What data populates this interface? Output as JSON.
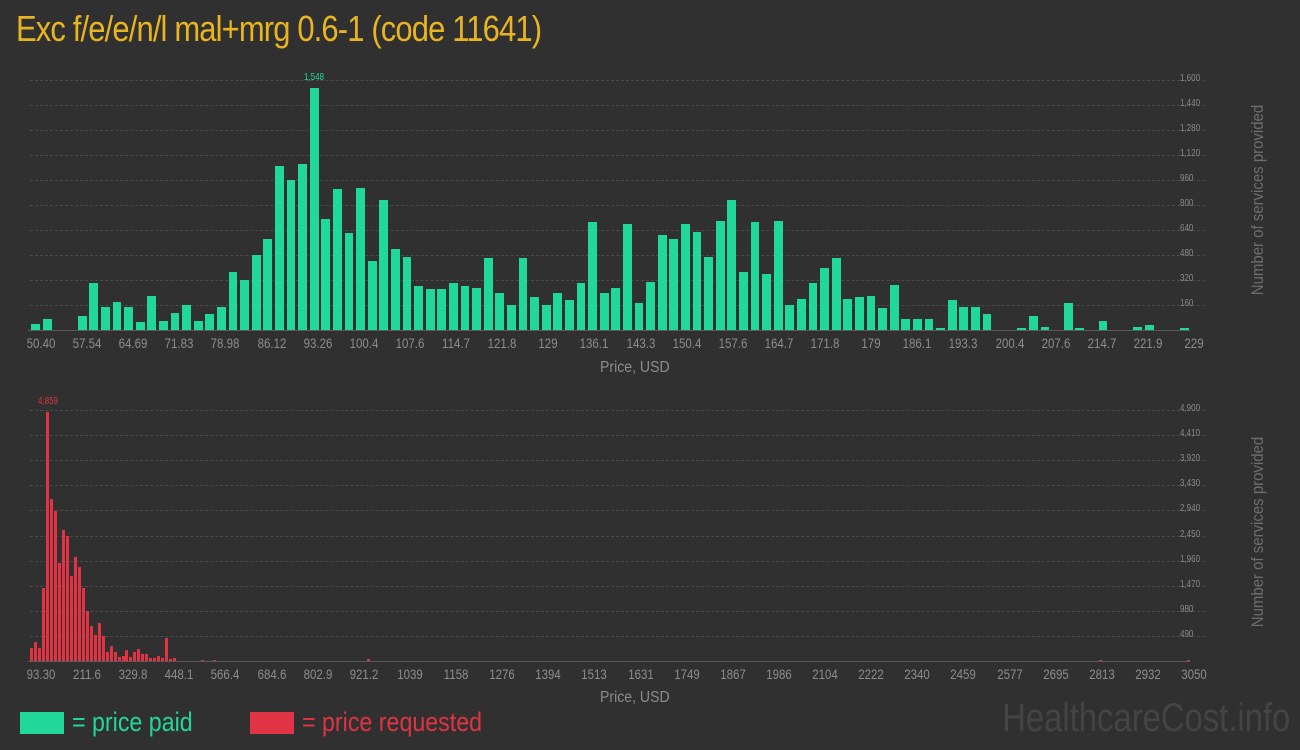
{
  "title": "Exc f/e/e/n/l mal+mrg 0.6-1 (code 11641)",
  "colors": {
    "title": "#e8b520",
    "paid": "#20d89a",
    "requested": "#e03444",
    "background": "#303030"
  },
  "legend": {
    "paid_label": "= price paid",
    "requested_label": "= price requested"
  },
  "watermark": "HealthcareCost.info",
  "chart_data": [
    {
      "type": "bar",
      "title": "Price paid distribution",
      "xlabel": "Price, USD",
      "ylabel": "Number of services provided",
      "ylim": [
        0,
        1600
      ],
      "grid": true,
      "peak_label": "1,548",
      "y_ticks": [
        "160",
        "320",
        "480",
        "640",
        "800",
        "960",
        "1,120",
        "1,280",
        "1,440",
        "1,600"
      ],
      "x_tick_labels": [
        "50.40",
        "57.54",
        "64.69",
        "71.83",
        "78.98",
        "86.12",
        "93.26",
        "100.4",
        "107.6",
        "114.7",
        "121.8",
        "129",
        "136.1",
        "143.3",
        "150.4",
        "157.6",
        "164.7",
        "171.8",
        "179",
        "186.1",
        "193.3",
        "200.4",
        "207.6",
        "214.7",
        "221.9",
        "229"
      ],
      "series": [
        {
          "name": "price paid",
          "color": "#20d89a",
          "values": [
            40,
            70,
            0,
            0,
            90,
            300,
            150,
            180,
            150,
            50,
            220,
            60,
            110,
            160,
            60,
            100,
            150,
            370,
            320,
            480,
            580,
            1050,
            960,
            1060,
            1548,
            710,
            900,
            620,
            910,
            440,
            830,
            520,
            470,
            280,
            260,
            260,
            300,
            280,
            270,
            460,
            240,
            160,
            460,
            210,
            160,
            240,
            190,
            300,
            690,
            240,
            270,
            680,
            170,
            310,
            610,
            580,
            680,
            630,
            470,
            700,
            830,
            370,
            690,
            360,
            700,
            160,
            200,
            300,
            400,
            460,
            200,
            210,
            220,
            140,
            290,
            70,
            70,
            70,
            10,
            190,
            150,
            150,
            100,
            0,
            0,
            10,
            90,
            20,
            0,
            170,
            10,
            0,
            60,
            0,
            0,
            20,
            30,
            0,
            0,
            10
          ]
        }
      ]
    },
    {
      "type": "bar",
      "title": "Price requested distribution",
      "xlabel": "Price, USD",
      "ylabel": "Number of services provided",
      "ylim": [
        0,
        4900
      ],
      "grid": true,
      "peak_label": "4,859",
      "y_ticks": [
        "490",
        "980",
        "1,470",
        "1,960",
        "2,450",
        "2,940",
        "3,430",
        "3,920",
        "4,410",
        "4,900"
      ],
      "x_tick_labels": [
        "93.30",
        "211.6",
        "329.8",
        "448.1",
        "566.4",
        "684.6",
        "802.9",
        "921.2",
        "1039",
        "1158",
        "1276",
        "1394",
        "1513",
        "1631",
        "1749",
        "1867",
        "1986",
        "2104",
        "2222",
        "2340",
        "2459",
        "2577",
        "2695",
        "2813",
        "2932",
        "3050"
      ],
      "series": [
        {
          "name": "price requested",
          "color": "#e03444",
          "values": [
            260,
            380,
            260,
            1420,
            4859,
            3160,
            2920,
            1920,
            2560,
            2440,
            1650,
            2030,
            1830,
            1420,
            980,
            690,
            510,
            750,
            490,
            170,
            290,
            170,
            80,
            100,
            210,
            80,
            170,
            230,
            130,
            130,
            60,
            60,
            90,
            60,
            440,
            30,
            50,
            0,
            0,
            0,
            0,
            0,
            0,
            10,
            0,
            0,
            10,
            0,
            0,
            0,
            0,
            0,
            0,
            0,
            0,
            0,
            0,
            0,
            0,
            0,
            0,
            0,
            0,
            0,
            0,
            0,
            0,
            0,
            0,
            0,
            0,
            0,
            0,
            0,
            0,
            0,
            0,
            0,
            0,
            0,
            0,
            0,
            0,
            0,
            0,
            40,
            0,
            0,
            0,
            0,
            0,
            0,
            0,
            0,
            0,
            0,
            0,
            0,
            0,
            0,
            0,
            0,
            0,
            0,
            0,
            0,
            0,
            0,
            0,
            0,
            0,
            0,
            0,
            0,
            0,
            0,
            0,
            0,
            0,
            0,
            0,
            0,
            0,
            0,
            0,
            0,
            0,
            0,
            0,
            0,
            0,
            0,
            0,
            0,
            0,
            0,
            0,
            0,
            0,
            0,
            0,
            0,
            0,
            0,
            0,
            0,
            0,
            0,
            0,
            0,
            0,
            0,
            0,
            0,
            0,
            0,
            0,
            0,
            0,
            0,
            0,
            0,
            0,
            0,
            0,
            0,
            0,
            0,
            0,
            0,
            0,
            0,
            0,
            0,
            0,
            0,
            0,
            0,
            0,
            0,
            0,
            0,
            0,
            0,
            0,
            0,
            0,
            0,
            0,
            0,
            0,
            0,
            0,
            0,
            0,
            0,
            0,
            0,
            0,
            0,
            0,
            0,
            0,
            0,
            0,
            0,
            0,
            0,
            0,
            0,
            0,
            0,
            0,
            0,
            0,
            0,
            0,
            0,
            0,
            0,
            0,
            0,
            0,
            0,
            0,
            0,
            0,
            0,
            0,
            0,
            0,
            0,
            0,
            0,
            0,
            0,
            0,
            0,
            0,
            0,
            0,
            0,
            0,
            0,
            0,
            0,
            0,
            0,
            0,
            0,
            0,
            0,
            0,
            0,
            0,
            0,
            0,
            0,
            0,
            0,
            0,
            0,
            0,
            0,
            0,
            0,
            0,
            0,
            0,
            0,
            20,
            0,
            0,
            0,
            0,
            0,
            0,
            0,
            0,
            0,
            0,
            0,
            0,
            0,
            0,
            0,
            0,
            0,
            0,
            0,
            0,
            0,
            20
          ]
        }
      ]
    }
  ]
}
